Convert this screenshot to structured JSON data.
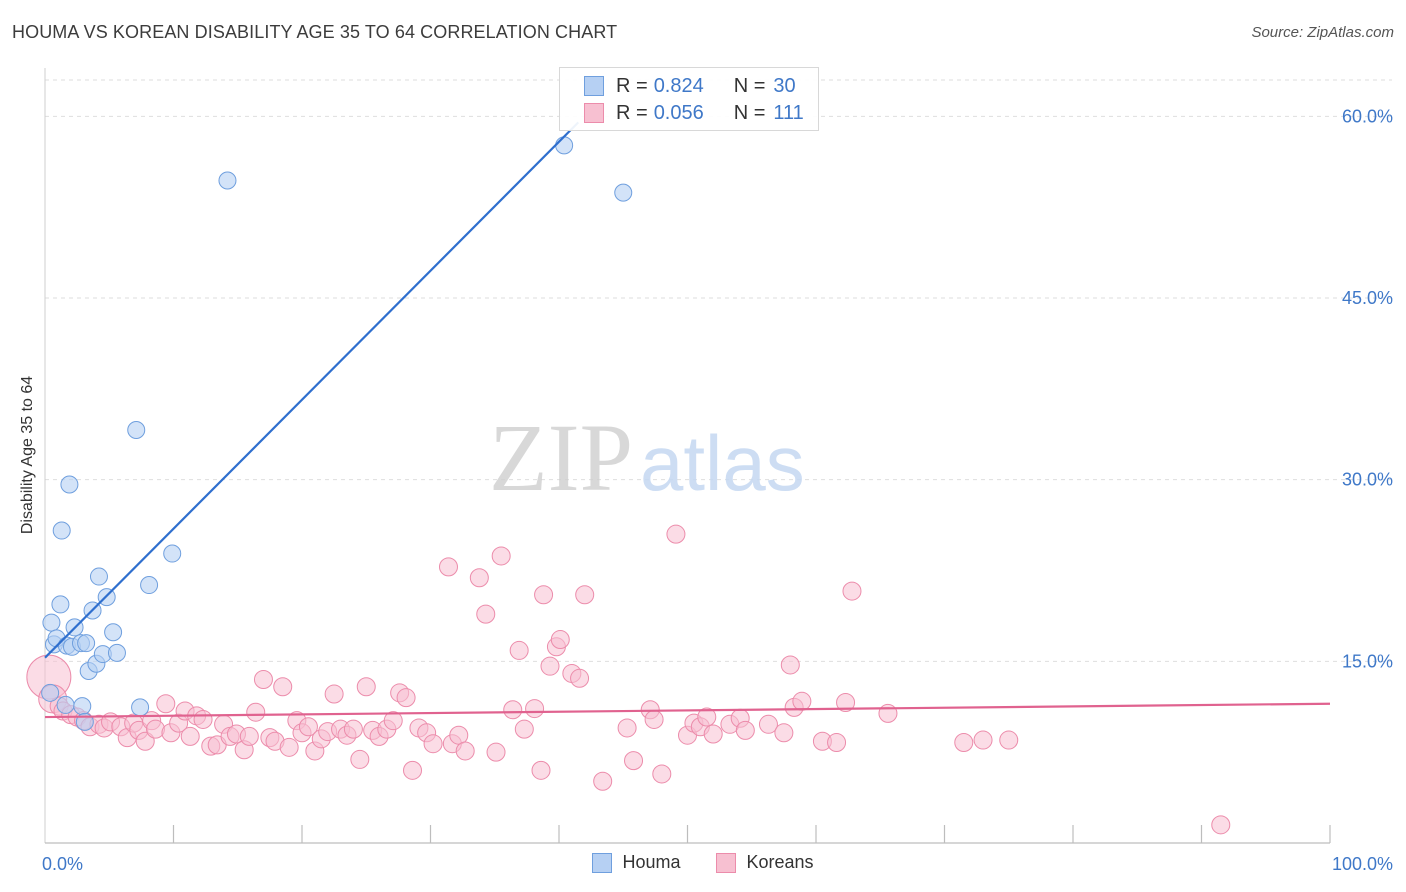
{
  "header": {
    "title": "HOUMA VS KOREAN DISABILITY AGE 35 TO 64 CORRELATION CHART",
    "source": "Source: ZipAtlas.com"
  },
  "watermark": {
    "part1": "ZIP",
    "part2": "atlas"
  },
  "legend_top": {
    "rows": [
      {
        "r_label": "R =",
        "r_value": "0.824",
        "n_label": "N =",
        "n_value": "30"
      },
      {
        "r_label": "R =",
        "r_value": "0.056",
        "n_label": "N =",
        "n_value": "111"
      }
    ]
  },
  "colors": {
    "houma_fill": "#b6d0f3",
    "houma_stroke": "#6f9fde",
    "houma_line": "#2f6fce",
    "korean_fill": "#f7c0d1",
    "korean_stroke": "#ec8cab",
    "korean_line": "#e0628f",
    "tick_text": "#3f78c8",
    "grid": "#dedede"
  },
  "chart_data": {
    "type": "scatter",
    "title": "HOUMA VS KOREAN DISABILITY AGE 35 TO 64 CORRELATION CHART",
    "xlabel": "",
    "ylabel": "Disability Age 35 to 64",
    "xlim": [
      0,
      100
    ],
    "ylim": [
      0,
      63
    ],
    "y_ticks": [
      15,
      30,
      45,
      60
    ],
    "y_tick_labels": [
      "15.0%",
      "30.0%",
      "45.0%",
      "60.0%"
    ],
    "x_tick_labels": [
      "0.0%",
      "100.0%"
    ],
    "legend": {
      "position": "bottom",
      "entries": [
        "Houma",
        "Koreans"
      ]
    },
    "series": [
      {
        "name": "Houma",
        "r": 0.824,
        "n": 30,
        "trend": {
          "x": [
            0,
            41.5
          ],
          "y": [
            15.3,
            59.5
          ]
        },
        "points": [
          [
            0.4,
            12.4
          ],
          [
            0.5,
            18.2
          ],
          [
            0.7,
            16.4
          ],
          [
            0.9,
            16.9
          ],
          [
            1.2,
            19.7
          ],
          [
            1.3,
            25.8
          ],
          [
            1.6,
            11.4
          ],
          [
            1.7,
            16.3
          ],
          [
            1.9,
            29.6
          ],
          [
            2.1,
            16.2
          ],
          [
            2.3,
            17.8
          ],
          [
            2.8,
            16.5
          ],
          [
            2.9,
            11.3
          ],
          [
            3.1,
            10.0
          ],
          [
            3.2,
            16.5
          ],
          [
            3.4,
            14.2
          ],
          [
            3.7,
            19.2
          ],
          [
            4.0,
            14.8
          ],
          [
            4.2,
            22.0
          ],
          [
            4.5,
            15.6
          ],
          [
            4.8,
            20.3
          ],
          [
            5.3,
            17.4
          ],
          [
            5.6,
            15.7
          ],
          [
            7.1,
            34.1
          ],
          [
            7.4,
            11.2
          ],
          [
            8.1,
            21.3
          ],
          [
            9.9,
            23.9
          ],
          [
            14.2,
            54.7
          ],
          [
            40.4,
            57.6
          ],
          [
            45.0,
            53.7
          ]
        ]
      },
      {
        "name": "Koreans",
        "r": 0.056,
        "n": 111,
        "trend": {
          "x": [
            0,
            100
          ],
          "y": [
            10.4,
            11.5
          ]
        },
        "points": [
          [
            0.3,
            13.7
          ],
          [
            0.6,
            11.9
          ],
          [
            1.1,
            11.3
          ],
          [
            1.4,
            10.9
          ],
          [
            2.0,
            10.6
          ],
          [
            2.5,
            10.4
          ],
          [
            3.0,
            10.1
          ],
          [
            3.5,
            9.6
          ],
          [
            4.2,
            9.8
          ],
          [
            4.6,
            9.5
          ],
          [
            5.1,
            10.0
          ],
          [
            5.9,
            9.6
          ],
          [
            6.4,
            8.7
          ],
          [
            6.9,
            9.9
          ],
          [
            7.3,
            9.3
          ],
          [
            7.8,
            8.4
          ],
          [
            8.3,
            10.1
          ],
          [
            8.6,
            9.4
          ],
          [
            9.4,
            11.5
          ],
          [
            9.8,
            9.1
          ],
          [
            10.4,
            9.9
          ],
          [
            10.9,
            10.9
          ],
          [
            11.3,
            8.8
          ],
          [
            11.8,
            10.5
          ],
          [
            12.3,
            10.2
          ],
          [
            12.9,
            8.0
          ],
          [
            13.4,
            8.1
          ],
          [
            13.9,
            9.8
          ],
          [
            14.4,
            8.8
          ],
          [
            14.9,
            9.0
          ],
          [
            15.5,
            7.7
          ],
          [
            15.9,
            8.8
          ],
          [
            16.4,
            10.8
          ],
          [
            17.0,
            13.5
          ],
          [
            17.5,
            8.7
          ],
          [
            17.9,
            8.4
          ],
          [
            18.5,
            12.9
          ],
          [
            19.0,
            7.9
          ],
          [
            19.6,
            10.1
          ],
          [
            20.0,
            9.1
          ],
          [
            20.5,
            9.6
          ],
          [
            21.0,
            7.6
          ],
          [
            21.5,
            8.6
          ],
          [
            22.0,
            9.2
          ],
          [
            22.5,
            12.3
          ],
          [
            23.0,
            9.4
          ],
          [
            23.5,
            8.9
          ],
          [
            24.0,
            9.4
          ],
          [
            24.5,
            6.9
          ],
          [
            25.0,
            12.9
          ],
          [
            25.5,
            9.3
          ],
          [
            26.0,
            8.8
          ],
          [
            26.6,
            9.4
          ],
          [
            27.1,
            10.1
          ],
          [
            27.6,
            12.4
          ],
          [
            28.1,
            12.0
          ],
          [
            28.6,
            6.0
          ],
          [
            29.1,
            9.5
          ],
          [
            29.7,
            9.1
          ],
          [
            30.2,
            8.2
          ],
          [
            31.4,
            22.8
          ],
          [
            31.7,
            8.2
          ],
          [
            32.2,
            8.9
          ],
          [
            32.7,
            7.6
          ],
          [
            33.8,
            21.9
          ],
          [
            34.3,
            18.9
          ],
          [
            35.1,
            7.5
          ],
          [
            35.5,
            23.7
          ],
          [
            36.4,
            11.0
          ],
          [
            36.9,
            15.9
          ],
          [
            37.3,
            9.4
          ],
          [
            38.1,
            11.1
          ],
          [
            38.6,
            6.0
          ],
          [
            38.8,
            20.5
          ],
          [
            39.3,
            14.6
          ],
          [
            39.8,
            16.2
          ],
          [
            40.1,
            16.8
          ],
          [
            41.0,
            14.0
          ],
          [
            41.6,
            13.6
          ],
          [
            42.0,
            20.5
          ],
          [
            43.4,
            5.1
          ],
          [
            45.3,
            9.5
          ],
          [
            45.8,
            6.8
          ],
          [
            47.1,
            11.0
          ],
          [
            47.4,
            10.2
          ],
          [
            48.0,
            5.7
          ],
          [
            49.1,
            25.5
          ],
          [
            50.0,
            8.9
          ],
          [
            50.5,
            9.9
          ],
          [
            51.0,
            9.6
          ],
          [
            51.5,
            10.4
          ],
          [
            52.0,
            9.0
          ],
          [
            53.3,
            9.8
          ],
          [
            54.1,
            10.3
          ],
          [
            54.5,
            9.3
          ],
          [
            56.3,
            9.8
          ],
          [
            57.5,
            9.1
          ],
          [
            58.0,
            14.7
          ],
          [
            58.3,
            11.2
          ],
          [
            58.9,
            11.7
          ],
          [
            60.5,
            8.4
          ],
          [
            61.6,
            8.3
          ],
          [
            62.3,
            11.6
          ],
          [
            62.8,
            20.8
          ],
          [
            65.6,
            10.7
          ],
          [
            71.5,
            8.3
          ],
          [
            73.0,
            8.5
          ],
          [
            75.0,
            8.5
          ],
          [
            91.5,
            1.5
          ]
        ]
      }
    ]
  },
  "legend_bottom": {
    "items": [
      {
        "label": "Houma"
      },
      {
        "label": "Koreans"
      }
    ]
  }
}
